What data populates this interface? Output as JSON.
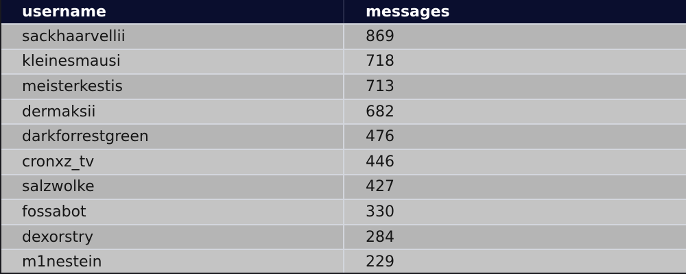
{
  "table": {
    "columns": {
      "username_header": "username",
      "messages_header": "messages"
    },
    "rows": [
      {
        "username": "sackhaarvellii",
        "messages": "869"
      },
      {
        "username": "kleinesmausi",
        "messages": "718"
      },
      {
        "username": "meisterkestis",
        "messages": "713"
      },
      {
        "username": "dermaksii",
        "messages": "682"
      },
      {
        "username": "darkforrestgreen",
        "messages": "476"
      },
      {
        "username": "cronxz_tv",
        "messages": "446"
      },
      {
        "username": "salzwolke",
        "messages": "427"
      },
      {
        "username": "fossabot",
        "messages": "330"
      },
      {
        "username": "dexorstry",
        "messages": "284"
      },
      {
        "username": "m1nestein",
        "messages": "229"
      }
    ]
  },
  "chart_data": {
    "type": "table",
    "title": "",
    "columns": [
      "username",
      "messages"
    ],
    "rows": [
      [
        "sackhaarvellii",
        869
      ],
      [
        "kleinesmausi",
        718
      ],
      [
        "meisterkestis",
        713
      ],
      [
        "dermaksii",
        682
      ],
      [
        "darkforrestgreen",
        476
      ],
      [
        "cronxz_tv",
        446
      ],
      [
        "salzwolke",
        427
      ],
      [
        "fossabot",
        330
      ],
      [
        "dexorstry",
        284
      ],
      [
        "m1nestein",
        229
      ]
    ]
  },
  "colors": {
    "header_bg": "#0a0e2e",
    "header_text": "#ffffff",
    "row_odd_bg": "#b5b5b5",
    "row_even_bg": "#c4c4c4",
    "separator": "#d3d6dd",
    "outer_border": "#1a1a1f",
    "cell_text": "#151515"
  }
}
